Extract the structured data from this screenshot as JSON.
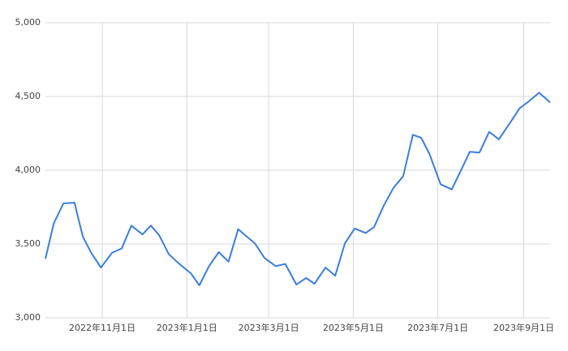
{
  "chart_data": {
    "type": "line",
    "x": [
      "2022-09-21",
      "2022-09-27",
      "2022-10-04",
      "2022-10-12",
      "2022-10-14",
      "2022-10-18",
      "2022-10-24",
      "2022-10-31",
      "2022-11-08",
      "2022-11-15",
      "2022-11-22",
      "2022-11-30",
      "2022-12-06",
      "2022-12-12",
      "2022-12-19",
      "2022-12-26",
      "2023-01-04",
      "2023-01-10",
      "2023-01-17",
      "2023-01-24",
      "2023-01-31",
      "2023-02-07",
      "2023-02-12",
      "2023-02-19",
      "2023-02-26",
      "2023-03-06",
      "2023-03-13",
      "2023-03-21",
      "2023-03-28",
      "2023-04-03",
      "2023-04-11",
      "2023-04-18",
      "2023-04-25",
      "2023-05-02",
      "2023-05-10",
      "2023-05-16",
      "2023-05-23",
      "2023-05-30",
      "2023-06-06",
      "2023-06-13",
      "2023-06-19",
      "2023-06-25",
      "2023-07-03",
      "2023-07-11",
      "2023-07-17",
      "2023-07-24",
      "2023-07-31",
      "2023-08-07",
      "2023-08-14",
      "2023-08-22",
      "2023-08-29",
      "2023-09-05",
      "2023-09-12",
      "2023-09-20"
    ],
    "series": [
      {
        "color": "#3b7ddd",
        "values": [
          3400,
          3640,
          3775,
          3780,
          3700,
          3550,
          3440,
          3340,
          3440,
          3470,
          3625,
          3565,
          3625,
          3560,
          3430,
          3370,
          3300,
          3220,
          3350,
          3445,
          3380,
          3600,
          3560,
          3505,
          3405,
          3350,
          3365,
          3225,
          3270,
          3230,
          3340,
          3285,
          3505,
          3605,
          3575,
          3615,
          3760,
          3880,
          3960,
          4240,
          4220,
          4110,
          3905,
          3870,
          3985,
          4125,
          4120,
          4260,
          4210,
          4320,
          4420,
          4470,
          4525,
          4460
        ]
      }
    ],
    "xlim": [
      "2022-09-21",
      "2023-09-20"
    ],
    "xticks": [
      {
        "value": "2022-11-01",
        "label": "2022年11月1日"
      },
      {
        "value": "2023-01-01",
        "label": "2023年1月1日"
      },
      {
        "value": "2023-03-01",
        "label": "2023年3月1日"
      },
      {
        "value": "2023-05-01",
        "label": "2023年5月1日"
      },
      {
        "value": "2023-07-01",
        "label": "2023年7月1日"
      },
      {
        "value": "2023-09-01",
        "label": "2023年9月1日"
      }
    ],
    "ylim": [
      3000,
      5000
    ],
    "yticks": [
      {
        "value": 3000,
        "label": "3,000"
      },
      {
        "value": 3500,
        "label": "3,500"
      },
      {
        "value": 4000,
        "label": "4,000"
      },
      {
        "value": 4500,
        "label": "4,500"
      },
      {
        "value": 5000,
        "label": "5,000"
      }
    ],
    "grid": true
  }
}
